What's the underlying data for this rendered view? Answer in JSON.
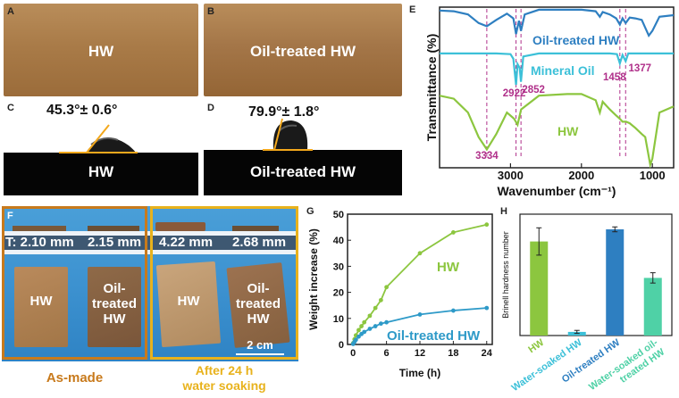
{
  "panels": {
    "A": {
      "letter": "A",
      "label": "HW"
    },
    "B": {
      "letter": "B",
      "label": "Oil-treated HW"
    },
    "C": {
      "letter": "C",
      "angle": "45.3°± 0.6°",
      "label": "HW"
    },
    "D": {
      "letter": "D",
      "angle": "79.9°± 1.8°",
      "label": "Oil-treated HW"
    },
    "F": {
      "letter": "F",
      "thickness": [
        "T: 2.10 mm",
        "2.15 mm",
        "4.22 mm",
        "2.68 mm"
      ],
      "samples": [
        "HW",
        "Oil-\ntreated\nHW",
        "HW",
        "Oil-\ntreated\nHW"
      ],
      "scale_bar": "2 cm",
      "caption_left": "As-made",
      "caption_right": "After 24 h\nwater soaking"
    }
  },
  "colors": {
    "blue": "#2e7fc1",
    "cyan": "#3cc0d8",
    "green": "#8cc63f",
    "magenta": "#b0308a",
    "teal": "#4fd1a6",
    "orange": "#c87a1c",
    "gold": "#e8b21c"
  },
  "chart_data": [
    {
      "id": "E",
      "type": "line",
      "panel_letter": "E",
      "xlabel": "Wavenumber (cm⁻¹)",
      "ylabel": "Transmittance (%)",
      "x_reversed": true,
      "xlim": [
        4000,
        700
      ],
      "xticks": [
        3000,
        2000,
        1000
      ],
      "series": [
        {
          "name": "Oil-treated HW",
          "color": "#2e7fc1",
          "offset": 0,
          "points": [
            [
              4000,
              98
            ],
            [
              3800,
              97
            ],
            [
              3600,
              93
            ],
            [
              3450,
              82
            ],
            [
              3334,
              78
            ],
            [
              3200,
              86
            ],
            [
              3050,
              94
            ],
            [
              2960,
              88
            ],
            [
              2922,
              68
            ],
            [
              2880,
              85
            ],
            [
              2852,
              72
            ],
            [
              2800,
              93
            ],
            [
              2600,
              99
            ],
            [
              2200,
              99
            ],
            [
              2000,
              99
            ],
            [
              1800,
              97
            ],
            [
              1740,
              90
            ],
            [
              1700,
              96
            ],
            [
              1600,
              93
            ],
            [
              1510,
              88
            ],
            [
              1458,
              80
            ],
            [
              1420,
              88
            ],
            [
              1377,
              82
            ],
            [
              1320,
              89
            ],
            [
              1240,
              88
            ],
            [
              1150,
              86
            ],
            [
              1050,
              66
            ],
            [
              1000,
              72
            ],
            [
              900,
              90
            ],
            [
              700,
              92
            ]
          ]
        },
        {
          "name": "Mineral Oil",
          "color": "#3cc0d8",
          "offset": 0,
          "points": [
            [
              4000,
              99
            ],
            [
              3200,
              99
            ],
            [
              3000,
              98
            ],
            [
              2960,
              92
            ],
            [
              2922,
              58
            ],
            [
              2900,
              85
            ],
            [
              2870,
              80
            ],
            [
              2852,
              62
            ],
            [
              2820,
              95
            ],
            [
              2600,
              99
            ],
            [
              1600,
              99
            ],
            [
              1500,
              98
            ],
            [
              1458,
              86
            ],
            [
              1420,
              97
            ],
            [
              1377,
              89
            ],
            [
              1340,
              99
            ],
            [
              1000,
              99
            ],
            [
              700,
              99
            ]
          ]
        },
        {
          "name": "HW",
          "color": "#8cc63f",
          "offset": 0,
          "points": [
            [
              4000,
              97
            ],
            [
              3800,
              95
            ],
            [
              3600,
              86
            ],
            [
              3450,
              70
            ],
            [
              3334,
              62
            ],
            [
              3200,
              72
            ],
            [
              3050,
              86
            ],
            [
              2950,
              82
            ],
            [
              2900,
              78
            ],
            [
              2850,
              88
            ],
            [
              2600,
              97
            ],
            [
              2200,
              98
            ],
            [
              2000,
              98
            ],
            [
              1800,
              94
            ],
            [
              1740,
              86
            ],
            [
              1700,
              93
            ],
            [
              1600,
              88
            ],
            [
              1510,
              84
            ],
            [
              1460,
              82
            ],
            [
              1420,
              80
            ],
            [
              1370,
              80
            ],
            [
              1320,
              79
            ],
            [
              1240,
              76
            ],
            [
              1150,
              72
            ],
            [
              1100,
              70
            ],
            [
              1030,
              52
            ],
            [
              1000,
              56
            ],
            [
              900,
              86
            ],
            [
              700,
              90
            ]
          ]
        }
      ],
      "annotations": [
        "3334",
        "2922",
        "2852",
        "1458",
        "1377"
      ],
      "annotation_wavenumbers": [
        3334,
        2922,
        2852,
        1458,
        1377
      ],
      "dashed_lines": [
        3334,
        2922,
        2852,
        1458,
        1377
      ]
    },
    {
      "id": "G",
      "type": "line",
      "panel_letter": "G",
      "xlabel": "Time (h)",
      "ylabel": "Weight increase (%)",
      "xlim": [
        -1,
        25
      ],
      "ylim": [
        0,
        50
      ],
      "xticks": [
        0,
        6,
        12,
        18,
        24
      ],
      "yticks": [
        0,
        10,
        20,
        30,
        40,
        50
      ],
      "series": [
        {
          "name": "HW",
          "color": "#8cc63f",
          "x": [
            0,
            0.25,
            0.5,
            1,
            1.5,
            2,
            3,
            4,
            5,
            6,
            12,
            18,
            24
          ],
          "y": [
            0.5,
            2,
            3.5,
            5.5,
            7,
            8.5,
            11,
            14,
            17,
            22,
            35,
            43,
            46
          ]
        },
        {
          "name": "Oil-treated HW",
          "color": "#2e9ac8",
          "x": [
            0,
            0.25,
            0.5,
            1,
            1.5,
            2,
            3,
            4,
            5,
            6,
            12,
            18,
            24
          ],
          "y": [
            0.2,
            1,
            1.8,
            3,
            4,
            4.8,
            6,
            7,
            8,
            8.5,
            11.5,
            13,
            14
          ]
        }
      ]
    },
    {
      "id": "H",
      "type": "bar",
      "panel_letter": "H",
      "ylabel": "Brinell hardness number",
      "categories": [
        "HW",
        "Water-soaked HW",
        "Oil-treated HW",
        "Water-soaked oil-\ntreated HW"
      ],
      "values": [
        31,
        1.2,
        35,
        19
      ],
      "errors": [
        4.5,
        0.5,
        0.8,
        1.7
      ],
      "colors": [
        "#8cc63f",
        "#3cc0d8",
        "#2e7fc1",
        "#4fd1a6"
      ],
      "ylim": [
        0,
        40
      ]
    }
  ]
}
